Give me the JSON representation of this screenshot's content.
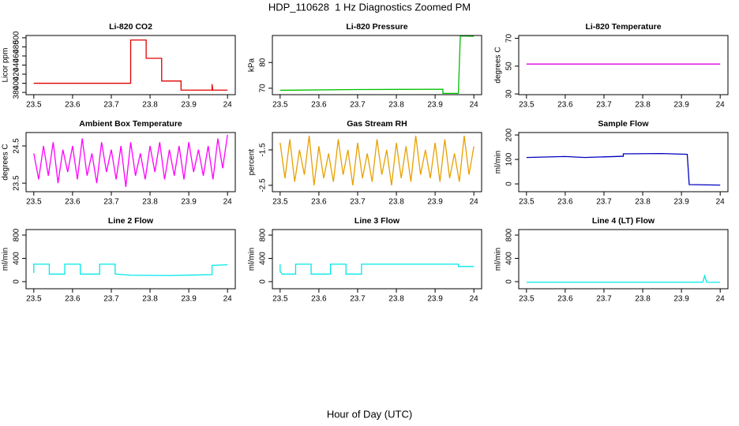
{
  "title": "HDP_110628  1 Hz Diagnostics Zoomed PM",
  "xlabel": "Hour of Day (UTC)",
  "chart_data": [
    {
      "type": "line",
      "title": "Li-820 CO2",
      "ylabel": "Licor ppm",
      "color": "#e00000",
      "xlim": [
        23.48,
        24.02
      ],
      "xticks": [
        23.5,
        23.6,
        23.7,
        23.8,
        23.9,
        24.0
      ],
      "ylim": [
        375,
        505
      ],
      "yticks": [
        380,
        400,
        420,
        440,
        460,
        480,
        500
      ],
      "x": [
        23.5,
        23.75,
        23.75,
        23.79,
        23.79,
        23.83,
        23.83,
        23.88,
        23.88,
        23.96,
        23.96,
        23.962,
        24.0
      ],
      "values": [
        400,
        400,
        495,
        495,
        455,
        455,
        405,
        405,
        385,
        385,
        398,
        385,
        385
      ]
    },
    {
      "type": "line",
      "title": "Li-820 Pressure",
      "ylabel": "kPa",
      "color": "#00c000",
      "xlim": [
        23.48,
        24.02
      ],
      "xticks": [
        23.5,
        23.6,
        23.7,
        23.8,
        23.9,
        24.0
      ],
      "ylim": [
        67.5,
        90.5
      ],
      "yticks": [
        70,
        80
      ],
      "x": [
        23.5,
        23.7,
        23.92,
        23.92,
        23.96,
        23.965,
        24.0
      ],
      "values": [
        69.2,
        69.5,
        69.6,
        68.0,
        68.0,
        90.3,
        90.2
      ]
    },
    {
      "type": "line",
      "title": "Li-820 Temperature",
      "ylabel": "degrees C",
      "color": "#e000e0",
      "xlim": [
        23.48,
        24.02
      ],
      "xticks": [
        23.5,
        23.6,
        23.7,
        23.8,
        23.9,
        24.0
      ],
      "ylim": [
        29.5,
        72
      ],
      "yticks": [
        30,
        50,
        70
      ],
      "x": [
        23.5,
        24.0
      ],
      "values": [
        51.5,
        51.5
      ]
    },
    {
      "type": "line",
      "title": "Ambient Box Temperature",
      "ylabel": "degrees C",
      "color": "#ff00ff",
      "xlim": [
        23.48,
        24.02
      ],
      "xticks": [
        23.5,
        23.6,
        23.7,
        23.8,
        23.9,
        24.0
      ],
      "ylim": [
        23.27,
        24.86
      ],
      "yticks": [
        23.5,
        24.5
      ],
      "x": [
        23.5,
        23.5125,
        23.525,
        23.5375,
        23.55,
        23.5625,
        23.575,
        23.5875,
        23.6,
        23.6125,
        23.625,
        23.6375,
        23.65,
        23.6625,
        23.675,
        23.6875,
        23.7,
        23.7125,
        23.725,
        23.7375,
        23.75,
        23.7625,
        23.775,
        23.7875,
        23.8,
        23.8125,
        23.825,
        23.8375,
        23.85,
        23.8625,
        23.875,
        23.8875,
        23.9,
        23.9125,
        23.925,
        23.9375,
        23.95,
        23.9625,
        23.975,
        23.9875,
        24.0
      ],
      "values": [
        24.3,
        23.6,
        24.5,
        23.7,
        24.6,
        23.5,
        24.4,
        23.8,
        24.5,
        23.6,
        24.7,
        23.7,
        24.3,
        23.5,
        24.6,
        23.8,
        24.4,
        23.6,
        24.5,
        23.4,
        24.6,
        23.7,
        24.3,
        23.6,
        24.5,
        23.8,
        24.6,
        23.6,
        24.4,
        23.7,
        24.5,
        23.6,
        24.6,
        23.8,
        24.4,
        23.7,
        24.5,
        23.6,
        24.7,
        23.9,
        24.8
      ]
    },
    {
      "type": "line",
      "title": "Gas Stream RH",
      "ylabel": "percent",
      "color": "#e8a000",
      "xlim": [
        23.48,
        24.02
      ],
      "xticks": [
        23.5,
        23.6,
        23.7,
        23.8,
        23.9,
        24.0
      ],
      "ylim": [
        -2.68,
        -1.01
      ],
      "yticks": [
        -2.5,
        -1.5
      ],
      "x": [
        23.5,
        23.5125,
        23.525,
        23.5375,
        23.55,
        23.5625,
        23.575,
        23.5875,
        23.6,
        23.6125,
        23.625,
        23.6375,
        23.65,
        23.6625,
        23.675,
        23.6875,
        23.7,
        23.7125,
        23.725,
        23.7375,
        23.75,
        23.7625,
        23.775,
        23.7875,
        23.8,
        23.8125,
        23.825,
        23.8375,
        23.85,
        23.8625,
        23.875,
        23.8875,
        23.9,
        23.9125,
        23.925,
        23.9375,
        23.95,
        23.9625,
        23.975,
        23.9875,
        24.0
      ],
      "values": [
        -1.3,
        -2.3,
        -1.2,
        -2.4,
        -1.5,
        -2.2,
        -1.1,
        -2.5,
        -1.4,
        -2.3,
        -1.6,
        -2.4,
        -1.2,
        -2.2,
        -1.5,
        -2.5,
        -1.3,
        -2.3,
        -1.6,
        -2.4,
        -1.2,
        -2.2,
        -1.5,
        -2.5,
        -1.3,
        -2.3,
        -1.4,
        -2.4,
        -1.1,
        -2.2,
        -1.5,
        -2.3,
        -1.3,
        -2.4,
        -1.2,
        -2.3,
        -1.6,
        -2.4,
        -1.1,
        -2.2,
        -1.4
      ]
    },
    {
      "type": "line",
      "title": "Sample Flow",
      "ylabel": "ml/min",
      "color": "#0000c0",
      "xlim": [
        23.48,
        24.02
      ],
      "xticks": [
        23.5,
        23.6,
        23.7,
        23.8,
        23.9,
        24.0
      ],
      "ylim": [
        -32,
        210
      ],
      "yticks": [
        0,
        100,
        200
      ],
      "x": [
        23.5,
        23.6,
        23.65,
        23.75,
        23.75,
        23.85,
        23.915,
        23.92,
        24.0
      ],
      "values": [
        108,
        112,
        108,
        113,
        123,
        124,
        121,
        -3,
        -5
      ]
    },
    {
      "type": "line",
      "title": "Line 2 Flow",
      "ylabel": "ml/min",
      "color": "#00e8e8",
      "xlim": [
        23.48,
        24.02
      ],
      "xticks": [
        23.5,
        23.6,
        23.7,
        23.8,
        23.9,
        24.0
      ],
      "ylim": [
        -122,
        895
      ],
      "yticks": [
        0,
        400,
        800
      ],
      "x": [
        23.5,
        23.5,
        23.54,
        23.54,
        23.58,
        23.58,
        23.62,
        23.62,
        23.67,
        23.67,
        23.71,
        23.71,
        23.75,
        23.85,
        23.96,
        23.96,
        24.0
      ],
      "values": [
        150,
        300,
        300,
        130,
        130,
        300,
        300,
        130,
        130,
        300,
        300,
        130,
        110,
        105,
        120,
        280,
        290
      ]
    },
    {
      "type": "line",
      "title": "Line 3 Flow",
      "ylabel": "ml/min",
      "color": "#00e8e8",
      "xlim": [
        23.48,
        24.02
      ],
      "xticks": [
        23.5,
        23.6,
        23.7,
        23.8,
        23.9,
        24.0
      ],
      "ylim": [
        -122,
        895
      ],
      "yticks": [
        0,
        400,
        800
      ],
      "x": [
        23.5,
        23.5,
        23.505,
        23.54,
        23.54,
        23.58,
        23.58,
        23.63,
        23.63,
        23.67,
        23.67,
        23.71,
        23.71,
        23.96,
        23.96,
        24.0
      ],
      "values": [
        300,
        180,
        130,
        130,
        300,
        300,
        130,
        130,
        300,
        300,
        130,
        130,
        300,
        300,
        260,
        260
      ]
    },
    {
      "type": "line",
      "title": "Line 4 (LT) Flow",
      "ylabel": "ml/min",
      "color": "#00e8e8",
      "xlim": [
        23.48,
        24.02
      ],
      "xticks": [
        23.5,
        23.6,
        23.7,
        23.8,
        23.9,
        24.0
      ],
      "ylim": [
        -122,
        895
      ],
      "yticks": [
        0,
        400,
        800
      ],
      "x": [
        23.5,
        23.955,
        23.96,
        23.965,
        24.0
      ],
      "values": [
        -10,
        -10,
        100,
        -10,
        -12
      ]
    }
  ]
}
